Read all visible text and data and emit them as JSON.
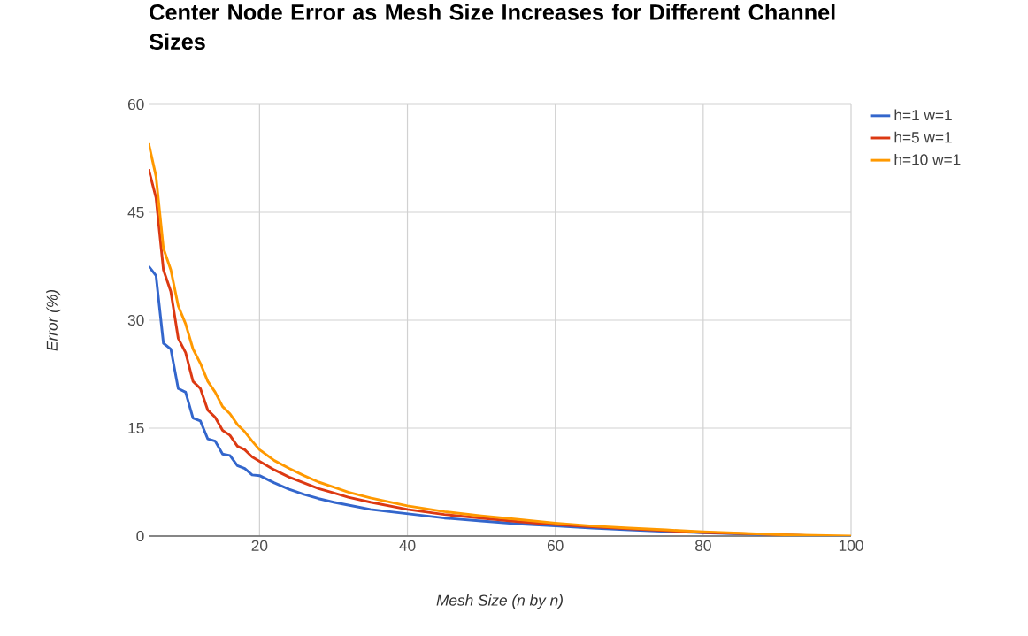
{
  "chart_data": {
    "type": "line",
    "title": "Center Node Error as Mesh Size Increases for Different Channel Sizes",
    "xlabel": "Mesh Size (n by n)",
    "ylabel": "Error (%)",
    "x": [
      5,
      6,
      7,
      8,
      9,
      10,
      11,
      12,
      13,
      14,
      15,
      16,
      17,
      18,
      19,
      20,
      22,
      24,
      26,
      28,
      30,
      32,
      35,
      40,
      45,
      50,
      55,
      60,
      65,
      70,
      75,
      80,
      85,
      90,
      95
    ],
    "series": [
      {
        "name": "h=1 w=1",
        "color": "#3366cc",
        "values": [
          37.5,
          36.2,
          26.8,
          26.0,
          20.5,
          20.0,
          16.4,
          16.0,
          13.5,
          13.2,
          11.4,
          11.2,
          9.8,
          9.4,
          8.5,
          8.4,
          7.4,
          6.5,
          5.8,
          5.2,
          4.7,
          4.3,
          3.7,
          3.1,
          2.5,
          2.1,
          1.7,
          1.4,
          1.1,
          0.85,
          0.65,
          0.45,
          0.3,
          0.15,
          0.05
        ]
      },
      {
        "name": "h=5 w=1",
        "color": "#dc3912",
        "values": [
          51,
          47,
          37,
          34,
          27.5,
          25.5,
          21.5,
          20.5,
          17.5,
          16.5,
          14.7,
          14.0,
          12.5,
          12.0,
          11.0,
          10.4,
          9.2,
          8.2,
          7.4,
          6.6,
          6.0,
          5.4,
          4.7,
          3.7,
          3.0,
          2.5,
          2.0,
          1.6,
          1.3,
          1.0,
          0.75,
          0.5,
          0.35,
          0.2,
          0.05
        ]
      },
      {
        "name": "h=10 w=1",
        "color": "#ff9900",
        "x": [
          5,
          6,
          7,
          8,
          9,
          10,
          11,
          12,
          13,
          14,
          15,
          16,
          17,
          18,
          19,
          20,
          22,
          24,
          26,
          28,
          30,
          32,
          35,
          40,
          45,
          50,
          55,
          60,
          65,
          70,
          75,
          80,
          85,
          90,
          95,
          100
        ],
        "values": [
          54.6,
          50,
          40,
          37,
          32,
          29.5,
          26,
          24,
          21.5,
          20,
          18,
          17,
          15.5,
          14.5,
          13.2,
          12,
          10.5,
          9.4,
          8.4,
          7.5,
          6.8,
          6.1,
          5.3,
          4.2,
          3.4,
          2.8,
          2.3,
          1.8,
          1.4,
          1.1,
          0.85,
          0.6,
          0.4,
          0.2,
          0.1,
          0
        ]
      }
    ],
    "xlim": [
      5,
      100
    ],
    "xticks": [
      20,
      40,
      60,
      80,
      100
    ],
    "ylim": [
      0,
      60
    ],
    "yticks": [
      0,
      15,
      30,
      45,
      60
    ],
    "grid": true,
    "legend": "top right",
    "marker": "none",
    "line_style": "solid"
  }
}
